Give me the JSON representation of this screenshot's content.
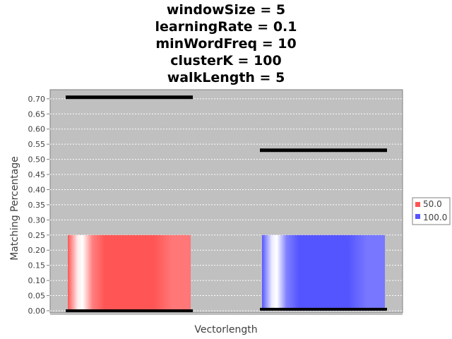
{
  "chart_data": {
    "type": "bar",
    "title_lines": [
      "windowSize = 5",
      "learningRate = 0.1",
      "minWordFreq = 10",
      "clusterK = 100",
      "walkLength = 5"
    ],
    "xlabel": "Vectorlength",
    "ylabel": "Matching Percentage",
    "ylim": [
      0.0,
      0.73
    ],
    "yticks": [
      "0.00",
      "0.05",
      "0.10",
      "0.15",
      "0.20",
      "0.25",
      "0.30",
      "0.35",
      "0.40",
      "0.45",
      "0.50",
      "0.55",
      "0.60",
      "0.65",
      "0.70"
    ],
    "grid": true,
    "legend_placement": "right",
    "series": [
      {
        "name": "50.0",
        "color": "#ff5555",
        "value": 0.25,
        "min": 0.0,
        "max": 0.705
      },
      {
        "name": "100.0",
        "color": "#5555ff",
        "value": 0.25,
        "min": 0.005,
        "max": 0.53
      }
    ]
  }
}
